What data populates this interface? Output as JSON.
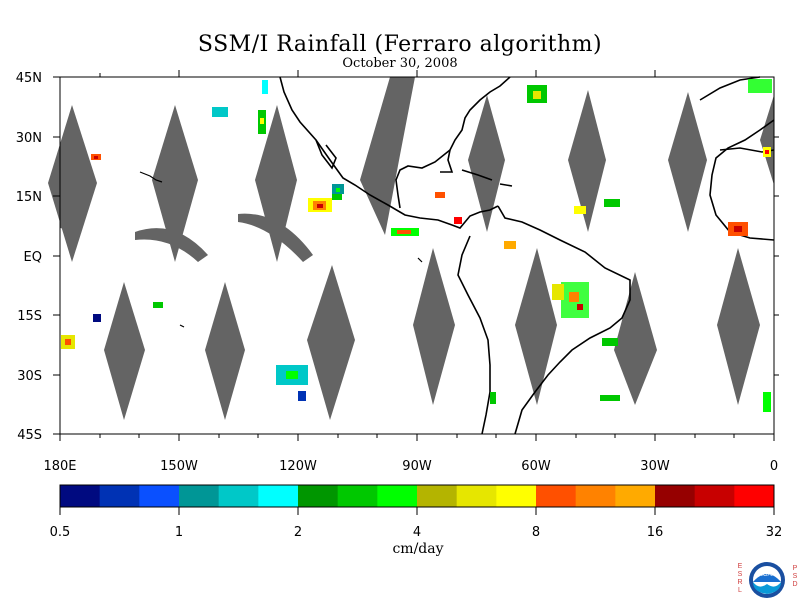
{
  "title": "SSM/I Rainfall (Ferraro algorithm)",
  "subtitle": "October 30, 2008",
  "axes": {
    "lon_labels": [
      "180E",
      "150W",
      "120W",
      "90W",
      "60W",
      "30W",
      "0"
    ],
    "lat_labels": [
      "45N",
      "30N",
      "15N",
      "EQ",
      "15S",
      "30S",
      "45S"
    ]
  },
  "colorbar": {
    "colors": [
      "#000a80",
      "#0032b4",
      "#0a50ff",
      "#009696",
      "#00c8c8",
      "#00ffff",
      "#009600",
      "#00c800",
      "#00ff00",
      "#b4b400",
      "#e6e600",
      "#ffff00",
      "#ff5000",
      "#ff8200",
      "#ffaa00",
      "#960000",
      "#c80000",
      "#ff0000"
    ],
    "tick_labels": [
      "0.5",
      "1",
      "2",
      "4",
      "8",
      "16",
      "32"
    ],
    "units": "cm/day"
  },
  "colors": {
    "missing_data": "#646464",
    "coast": "#000000"
  },
  "logo": {
    "letters_left": "ESRL",
    "letters_right": "PSD",
    "text": "NOAA"
  }
}
